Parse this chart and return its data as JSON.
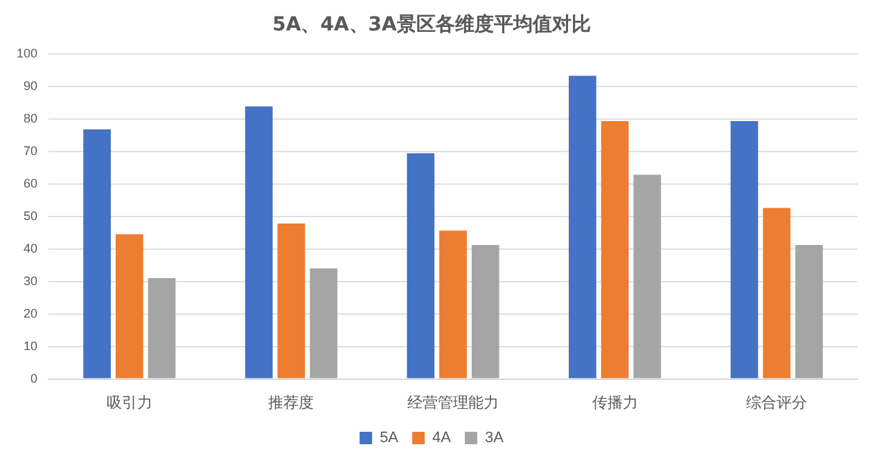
{
  "chart_data": {
    "type": "bar",
    "title": "5A、4A、3A景区各维度平均值对比",
    "categories": [
      "吸引力",
      "推荐度",
      "经营管理能力",
      "传播力",
      "综合评分"
    ],
    "series": [
      {
        "name": "5A",
        "color": "#4472c4",
        "values": [
          76.7,
          83.8,
          69.4,
          93.2,
          79.3
        ]
      },
      {
        "name": "4A",
        "color": "#ed7d31",
        "values": [
          44.5,
          47.8,
          45.6,
          79.3,
          52.6
        ]
      },
      {
        "name": "3A",
        "color": "#a5a5a5",
        "values": [
          31,
          34,
          41.2,
          62.8,
          41.2
        ]
      }
    ],
    "ylim": [
      0,
      100
    ],
    "yticks": [
      0,
      10,
      20,
      30,
      40,
      50,
      60,
      70,
      80,
      90,
      100
    ],
    "grid": "y",
    "legend": "bottom"
  }
}
